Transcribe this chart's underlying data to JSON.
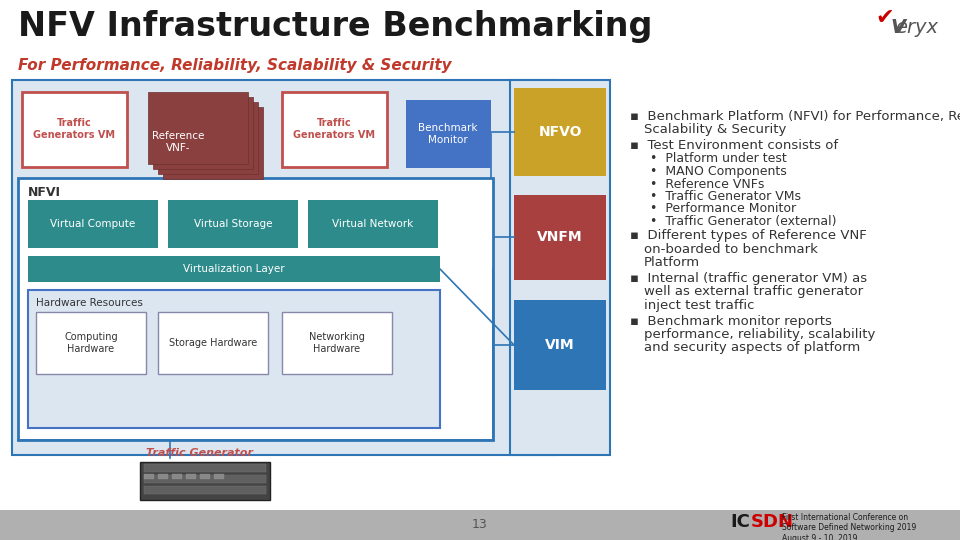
{
  "title": "NFV Infrastructure Benchmarking",
  "subtitle": "For Performance, Reliability, Scalability & Security",
  "title_color": "#1a1a1a",
  "subtitle_color": "#c0392b",
  "bg_color": "#ffffff",
  "page_number": "13",
  "bullet_points": [
    {
      "level": 1,
      "text": "Benchmark Platform (NFVI) for Performance, Reliability,\nScalability & Security"
    },
    {
      "level": 1,
      "text": "Test Environment consists of"
    },
    {
      "level": 2,
      "text": "Platform under test"
    },
    {
      "level": 2,
      "text": "MANO Components"
    },
    {
      "level": 2,
      "text": "Reference VNFs"
    },
    {
      "level": 2,
      "text": "Traffic Generator VMs"
    },
    {
      "level": 2,
      "text": "Performance Monitor"
    },
    {
      "level": 2,
      "text": "Traffic Generator (external)"
    },
    {
      "level": 1,
      "text": "Different types of Reference VNF\non-boarded to benchmark\nPlatform"
    },
    {
      "level": 1,
      "text": "Internal (traffic generator VM) as\nwell as external traffic generator\ninject test traffic"
    },
    {
      "level": 1,
      "text": "Benchmark monitor reports\nperformance, reliability, scalability\nand security aspects of platform"
    }
  ],
  "colors": {
    "light_blue_bg": "#dce6f1",
    "blue_border": "#2e75b6",
    "traffic_vm_red": "#c0504d",
    "ref_vnf_brown": "#8b4040",
    "ref_vnf_dark": "#6d3030",
    "benchmark_blue": "#4472c4",
    "nfvo_gold": "#c9a227",
    "vnfm_red": "#a94040",
    "vim_blue": "#2e75b6",
    "teal": "#2e8b8b",
    "hw_border": "#4472c4",
    "traffic_gen_label": "#c0504d",
    "footer_gray": "#b0b0b0",
    "text_dark": "#333333",
    "white": "#ffffff"
  }
}
